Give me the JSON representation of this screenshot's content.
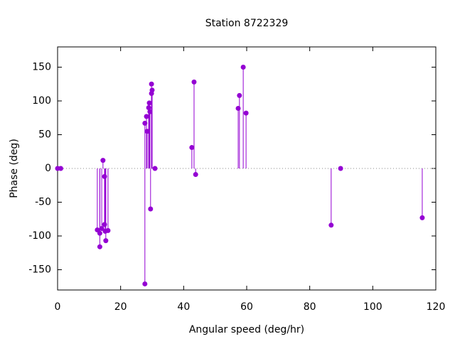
{
  "chart_data": {
    "type": "stem",
    "title": "Station 8722329",
    "x_label": "Angular speed (deg/hr)",
    "y_label": "Phase (deg)",
    "color": "#9400d3",
    "x": [
      0,
      1,
      12.6,
      13.4,
      13.4,
      14.0,
      14.4,
      14.9,
      14.9,
      15.1,
      15.3,
      16.0,
      27.7,
      27.7,
      28.2,
      28.4,
      28.9,
      29.1,
      29.3,
      29.5,
      29.8,
      29.8,
      30.0,
      30.9,
      42.6,
      43.3,
      43.8,
      57.3,
      57.7,
      58.9,
      59.8,
      86.8,
      89.8,
      115.7
    ],
    "values": [
      0,
      0,
      -91,
      -96,
      -116,
      -89,
      12,
      -12,
      -83,
      -93,
      -107,
      -92,
      -171,
      67,
      77,
      55,
      90,
      97,
      84,
      -60,
      125,
      111,
      116,
      0,
      31,
      128,
      -9,
      89,
      108,
      150,
      82,
      -84,
      0,
      -73
    ],
    "xlim": [
      0,
      120
    ],
    "xticks": [
      0,
      20,
      40,
      60,
      80,
      100,
      120
    ],
    "ylim": [
      -180,
      180
    ],
    "yticks": [
      -150,
      -100,
      -50,
      0,
      50,
      100,
      150
    ],
    "zero_line": true
  }
}
